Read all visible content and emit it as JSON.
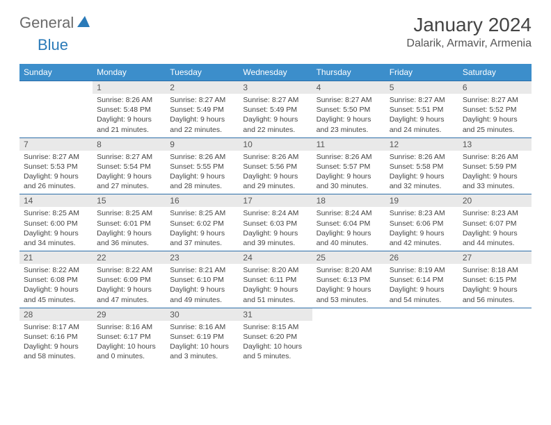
{
  "logo": {
    "text1": "General",
    "text2": "Blue"
  },
  "title": "January 2024",
  "location": "Dalarik, Armavir, Armenia",
  "colors": {
    "header_bg": "#3c8ecb",
    "header_text": "#ffffff",
    "border": "#2a6ca8",
    "daynum_bg": "#e9e9e9",
    "logo_gray": "#6a6a6a",
    "logo_blue": "#2a7ab8"
  },
  "weekdays": [
    "Sunday",
    "Monday",
    "Tuesday",
    "Wednesday",
    "Thursday",
    "Friday",
    "Saturday"
  ],
  "weeks": [
    [
      null,
      {
        "n": "1",
        "sr": "8:26 AM",
        "ss": "5:48 PM",
        "dl": "9 hours and 21 minutes."
      },
      {
        "n": "2",
        "sr": "8:27 AM",
        "ss": "5:49 PM",
        "dl": "9 hours and 22 minutes."
      },
      {
        "n": "3",
        "sr": "8:27 AM",
        "ss": "5:49 PM",
        "dl": "9 hours and 22 minutes."
      },
      {
        "n": "4",
        "sr": "8:27 AM",
        "ss": "5:50 PM",
        "dl": "9 hours and 23 minutes."
      },
      {
        "n": "5",
        "sr": "8:27 AM",
        "ss": "5:51 PM",
        "dl": "9 hours and 24 minutes."
      },
      {
        "n": "6",
        "sr": "8:27 AM",
        "ss": "5:52 PM",
        "dl": "9 hours and 25 minutes."
      }
    ],
    [
      {
        "n": "7",
        "sr": "8:27 AM",
        "ss": "5:53 PM",
        "dl": "9 hours and 26 minutes."
      },
      {
        "n": "8",
        "sr": "8:27 AM",
        "ss": "5:54 PM",
        "dl": "9 hours and 27 minutes."
      },
      {
        "n": "9",
        "sr": "8:26 AM",
        "ss": "5:55 PM",
        "dl": "9 hours and 28 minutes."
      },
      {
        "n": "10",
        "sr": "8:26 AM",
        "ss": "5:56 PM",
        "dl": "9 hours and 29 minutes."
      },
      {
        "n": "11",
        "sr": "8:26 AM",
        "ss": "5:57 PM",
        "dl": "9 hours and 30 minutes."
      },
      {
        "n": "12",
        "sr": "8:26 AM",
        "ss": "5:58 PM",
        "dl": "9 hours and 32 minutes."
      },
      {
        "n": "13",
        "sr": "8:26 AM",
        "ss": "5:59 PM",
        "dl": "9 hours and 33 minutes."
      }
    ],
    [
      {
        "n": "14",
        "sr": "8:25 AM",
        "ss": "6:00 PM",
        "dl": "9 hours and 34 minutes."
      },
      {
        "n": "15",
        "sr": "8:25 AM",
        "ss": "6:01 PM",
        "dl": "9 hours and 36 minutes."
      },
      {
        "n": "16",
        "sr": "8:25 AM",
        "ss": "6:02 PM",
        "dl": "9 hours and 37 minutes."
      },
      {
        "n": "17",
        "sr": "8:24 AM",
        "ss": "6:03 PM",
        "dl": "9 hours and 39 minutes."
      },
      {
        "n": "18",
        "sr": "8:24 AM",
        "ss": "6:04 PM",
        "dl": "9 hours and 40 minutes."
      },
      {
        "n": "19",
        "sr": "8:23 AM",
        "ss": "6:06 PM",
        "dl": "9 hours and 42 minutes."
      },
      {
        "n": "20",
        "sr": "8:23 AM",
        "ss": "6:07 PM",
        "dl": "9 hours and 44 minutes."
      }
    ],
    [
      {
        "n": "21",
        "sr": "8:22 AM",
        "ss": "6:08 PM",
        "dl": "9 hours and 45 minutes."
      },
      {
        "n": "22",
        "sr": "8:22 AM",
        "ss": "6:09 PM",
        "dl": "9 hours and 47 minutes."
      },
      {
        "n": "23",
        "sr": "8:21 AM",
        "ss": "6:10 PM",
        "dl": "9 hours and 49 minutes."
      },
      {
        "n": "24",
        "sr": "8:20 AM",
        "ss": "6:11 PM",
        "dl": "9 hours and 51 minutes."
      },
      {
        "n": "25",
        "sr": "8:20 AM",
        "ss": "6:13 PM",
        "dl": "9 hours and 53 minutes."
      },
      {
        "n": "26",
        "sr": "8:19 AM",
        "ss": "6:14 PM",
        "dl": "9 hours and 54 minutes."
      },
      {
        "n": "27",
        "sr": "8:18 AM",
        "ss": "6:15 PM",
        "dl": "9 hours and 56 minutes."
      }
    ],
    [
      {
        "n": "28",
        "sr": "8:17 AM",
        "ss": "6:16 PM",
        "dl": "9 hours and 58 minutes."
      },
      {
        "n": "29",
        "sr": "8:16 AM",
        "ss": "6:17 PM",
        "dl": "10 hours and 0 minutes."
      },
      {
        "n": "30",
        "sr": "8:16 AM",
        "ss": "6:19 PM",
        "dl": "10 hours and 3 minutes."
      },
      {
        "n": "31",
        "sr": "8:15 AM",
        "ss": "6:20 PM",
        "dl": "10 hours and 5 minutes."
      },
      null,
      null,
      null
    ]
  ],
  "labels": {
    "sunrise": "Sunrise: ",
    "sunset": "Sunset: ",
    "daylight": "Daylight: "
  }
}
